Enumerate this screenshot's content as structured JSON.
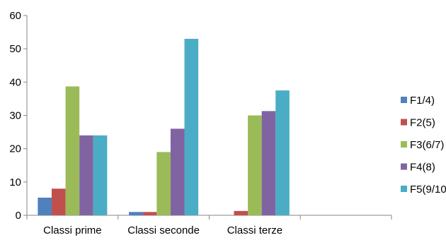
{
  "chart_data": {
    "type": "bar",
    "title": "",
    "xlabel": "",
    "ylabel": "",
    "ylim": [
      0,
      60
    ],
    "yticks": [
      0,
      10,
      20,
      30,
      40,
      50,
      60
    ],
    "grid": false,
    "legend_position": "right",
    "categories": [
      "Classi prime",
      "Classi seconde",
      "Classi terze",
      ""
    ],
    "series": [
      {
        "name": "F1/4)",
        "color": "#4F81BD",
        "values": [
          5.3,
          1.0,
          0,
          0
        ]
      },
      {
        "name": "F2(5)",
        "color": "#C0504D",
        "values": [
          8.0,
          1.0,
          1.3,
          0
        ]
      },
      {
        "name": "F3(6/7)",
        "color": "#9BBB59",
        "values": [
          38.7,
          19.0,
          30.0,
          0
        ]
      },
      {
        "name": "F4(8)",
        "color": "#8064A2",
        "values": [
          24.0,
          26.0,
          31.3,
          0
        ]
      },
      {
        "name": "F5(9/10)",
        "color": "#4BACC6",
        "values": [
          24.0,
          53.0,
          37.5,
          0
        ]
      }
    ]
  }
}
